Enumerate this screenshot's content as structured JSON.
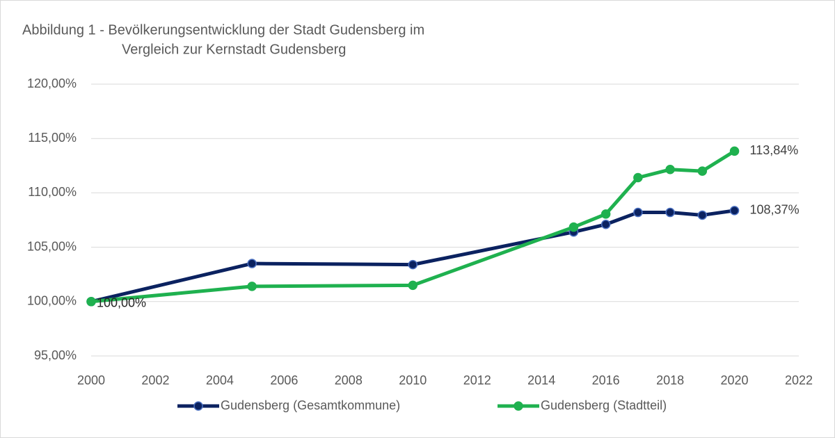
{
  "chart_data": {
    "type": "line",
    "title": [
      "Abbildung 1 -  Bevölkerungsentwicklung der Stadt Gudensberg im",
      "Vergleich zur Kernstadt Gudensberg"
    ],
    "x": [
      2000,
      2005,
      2010,
      2015,
      2016,
      2017,
      2018,
      2019,
      2020
    ],
    "series": [
      {
        "name": "Gudensberg (Gesamtkommune)",
        "color": "#0b2260",
        "values": [
          100,
          103.5,
          103.4,
          106.4,
          107.1,
          108.2,
          108.2,
          107.95,
          108.37
        ],
        "value_labels": [
          null,
          null,
          null,
          null,
          null,
          null,
          null,
          null,
          "108,37%"
        ]
      },
      {
        "name": "Gudensberg (Stadtteil)",
        "color": "#1fb14f",
        "values": [
          100,
          101.4,
          101.5,
          106.85,
          108.05,
          111.4,
          112.15,
          112.0,
          113.84
        ],
        "value_labels": [
          "100,00%",
          null,
          null,
          null,
          null,
          null,
          null,
          null,
          "113,84%"
        ]
      }
    ],
    "xlim": [
      2000,
      2022
    ],
    "xticks": [
      2000,
      2002,
      2004,
      2006,
      2008,
      2010,
      2012,
      2014,
      2016,
      2018,
      2020,
      2022
    ],
    "ylim": [
      95,
      120
    ],
    "yticks": [
      {
        "value": 95,
        "label": "95,00%"
      },
      {
        "value": 100,
        "label": "100,00%"
      },
      {
        "value": 105,
        "label": "105,00%"
      },
      {
        "value": 110,
        "label": "110,00%"
      },
      {
        "value": 115,
        "label": "115,00%"
      },
      {
        "value": 120,
        "label": "120,00%"
      }
    ],
    "grid": true,
    "legend": "bottom"
  }
}
